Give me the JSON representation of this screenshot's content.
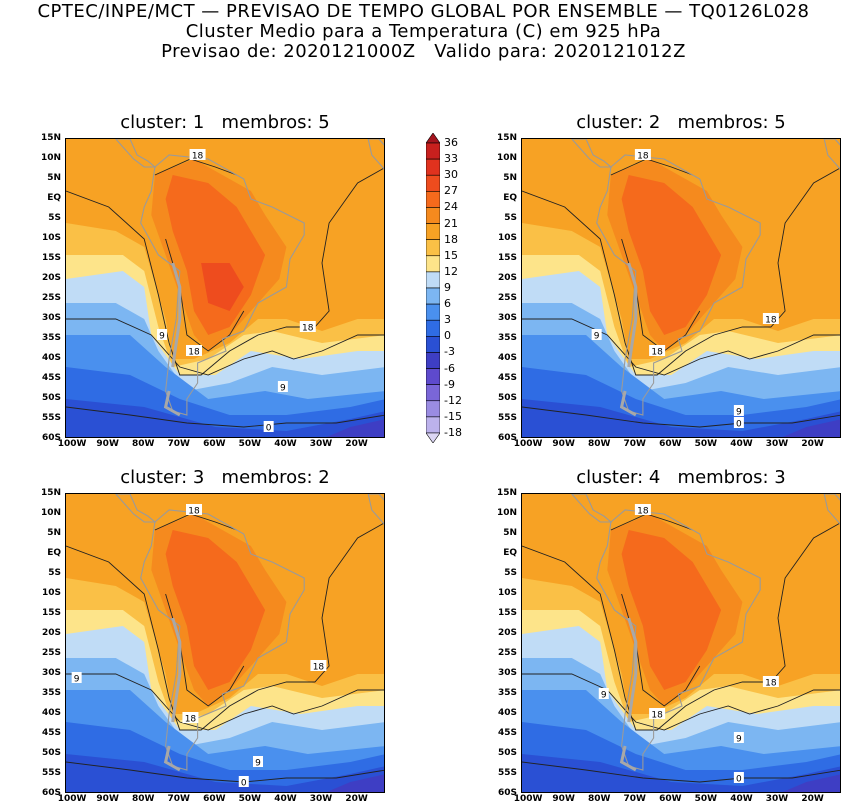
{
  "header": {
    "line1": "CPTEC/INPE/MCT — PREVISAO DE TEMPO GLOBAL POR ENSEMBLE — TQ0126L028",
    "line2": "Cluster Medio para a Temperatura (C) em 925 hPa",
    "line3": "Previsao de: 2020121000Z   Valido para: 2020121012Z"
  },
  "panels": [
    {
      "title": "cluster: 1   membros: 5",
      "labels": [
        {
          "text": "18",
          "lon": -65,
          "lat": 11
        },
        {
          "text": "18",
          "lon": -34,
          "lat": -32
        },
        {
          "text": "9",
          "lon": -75,
          "lat": -34
        },
        {
          "text": "18",
          "lon": -66,
          "lat": -38
        },
        {
          "text": "9",
          "lon": -41,
          "lat": -47
        },
        {
          "text": "0",
          "lon": -45,
          "lat": -57
        }
      ]
    },
    {
      "title": "cluster: 2   membros: 5",
      "labels": [
        {
          "text": "18",
          "lon": -68,
          "lat": 11
        },
        {
          "text": "18",
          "lon": -32,
          "lat": -30
        },
        {
          "text": "9",
          "lon": -81,
          "lat": -34
        },
        {
          "text": "18",
          "lon": -64,
          "lat": -38
        },
        {
          "text": "9",
          "lon": -41,
          "lat": -53
        },
        {
          "text": "0",
          "lon": -41,
          "lat": -56
        }
      ]
    },
    {
      "title": "cluster: 3   membros: 2",
      "labels": [
        {
          "text": "18",
          "lon": -66,
          "lat": 11
        },
        {
          "text": "18",
          "lon": -31,
          "lat": -28
        },
        {
          "text": "9",
          "lon": -99,
          "lat": -31
        },
        {
          "text": "18",
          "lon": -67,
          "lat": -41
        },
        {
          "text": "9",
          "lon": -48,
          "lat": -52
        },
        {
          "text": "0",
          "lon": -52,
          "lat": -57
        }
      ]
    },
    {
      "title": "cluster: 4   membros: 3",
      "labels": [
        {
          "text": "18",
          "lon": -68,
          "lat": 11
        },
        {
          "text": "18",
          "lon": -32,
          "lat": -32
        },
        {
          "text": "9",
          "lon": -79,
          "lat": -35
        },
        {
          "text": "18",
          "lon": -64,
          "lat": -40
        },
        {
          "text": "9",
          "lon": -41,
          "lat": -46
        },
        {
          "text": "0",
          "lon": -41,
          "lat": -56
        }
      ]
    }
  ],
  "lat_ticks": [
    "15N",
    "10N",
    "5N",
    "EQ",
    "5S",
    "10S",
    "15S",
    "20S",
    "25S",
    "30S",
    "35S",
    "40S",
    "45S",
    "50S",
    "55S",
    "60S"
  ],
  "lon_ticks": [
    "100W",
    "90W",
    "80W",
    "70W",
    "60W",
    "50W",
    "40W",
    "30W",
    "20W"
  ],
  "lat_values": [
    15,
    10,
    5,
    0,
    -5,
    -10,
    -15,
    -20,
    -25,
    -30,
    -35,
    -40,
    -45,
    -50,
    -55,
    -60
  ],
  "lon_values": [
    -100,
    -90,
    -80,
    -70,
    -60,
    -50,
    -40,
    -30,
    -20
  ],
  "map_extent": {
    "lon_min": -102,
    "lon_max": -12,
    "lat_min": -60,
    "lat_max": 15
  },
  "colorbar": {
    "labels": [
      "36",
      "33",
      "30",
      "27",
      "24",
      "21",
      "18",
      "15",
      "12",
      "9",
      "6",
      "3",
      "0",
      "-3",
      "-6",
      "-9",
      "-12",
      "-15",
      "-18"
    ],
    "colors": [
      "#a4141e",
      "#c8201e",
      "#e0321e",
      "#ee4c1e",
      "#f56a1c",
      "#f58a1e",
      "#f7a224",
      "#fac046",
      "#fde48a",
      "#c0dcf6",
      "#7cb6f2",
      "#4a90ee",
      "#2f6ce4",
      "#2a50d4",
      "#3e3ec4",
      "#5e4acd",
      "#7a66d8",
      "#9a8ce2",
      "#bcb2ec",
      "#dcd6f4"
    ]
  }
}
